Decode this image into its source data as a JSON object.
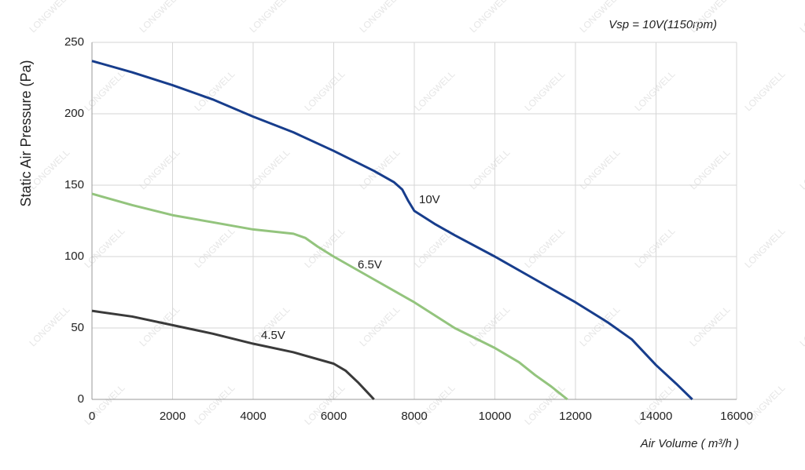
{
  "chart_data": {
    "type": "line",
    "annotation": "Vsp = 10V(1150rpm)",
    "x_label": "Air Volume ( m³/h )",
    "y_label": "Static Air Pressure  (Pa)",
    "watermark": "LONGWELL",
    "xlim": [
      0,
      16000
    ],
    "xticks": [
      0,
      2000,
      4000,
      6000,
      8000,
      10000,
      12000,
      14000,
      16000
    ],
    "ylim": [
      0,
      250
    ],
    "yticks": [
      0,
      50,
      100,
      150,
      200,
      250
    ],
    "grid": true,
    "series": [
      {
        "name": "10V",
        "color": "#173d8c",
        "x": [
          0,
          1000,
          2000,
          3000,
          4000,
          5000,
          6000,
          7000,
          7500,
          7700,
          7850,
          8000,
          8500,
          9000,
          10000,
          11000,
          12000,
          12800,
          13400,
          14000,
          14500,
          14900
        ],
        "values": [
          237,
          229,
          220,
          210,
          198,
          187,
          174,
          160,
          152,
          147,
          139,
          132,
          123,
          115,
          100,
          84,
          68,
          54,
          42,
          24,
          11,
          0
        ]
      },
      {
        "name": "6.5V",
        "color": "#93c47d",
        "x": [
          0,
          1000,
          2000,
          3000,
          4000,
          5000,
          5300,
          5600,
          6000,
          7000,
          8000,
          9000,
          10000,
          10600,
          11000,
          11400,
          11800
        ],
        "values": [
          144,
          136,
          129,
          124,
          119,
          116,
          113,
          107,
          100,
          84,
          68,
          50,
          36,
          26,
          17,
          9,
          0
        ],
        "_": null
      },
      {
        "name": "4.5V",
        "color": "#3a3a3a",
        "x": [
          0,
          1000,
          2000,
          3000,
          4000,
          5000,
          6000,
          6300,
          6600,
          6800,
          7000
        ],
        "values": [
          62,
          58,
          52,
          46,
          39,
          33,
          25,
          20,
          12,
          6,
          0
        ]
      }
    ]
  }
}
